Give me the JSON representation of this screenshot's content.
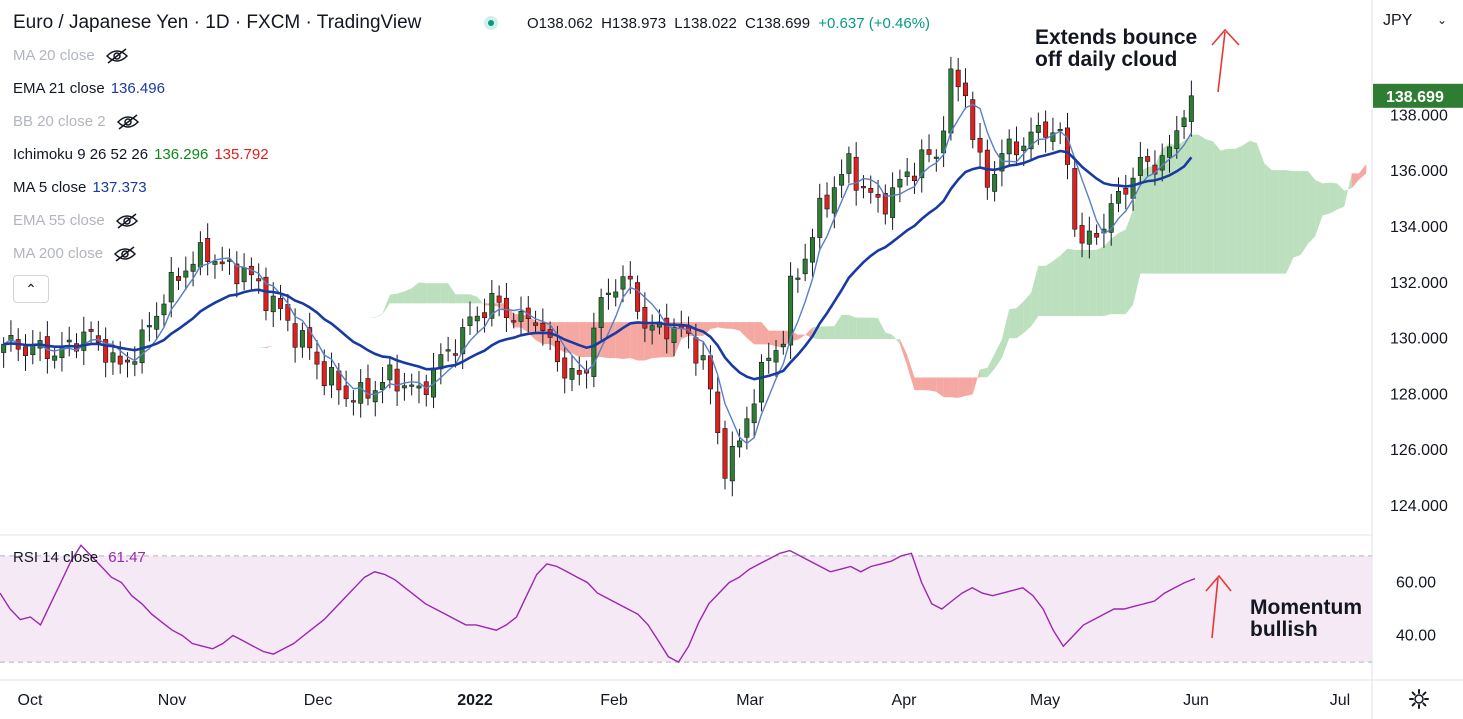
{
  "header": {
    "title": "Euro / Japanese Yen · 1D · FXCM · TradingView",
    "ohlc": {
      "o": "O138.062",
      "h": "H138.973",
      "l": "L138.022",
      "c": "C138.699",
      "chg": "+0.637 (+0.46%)"
    }
  },
  "currency": "JPY",
  "legend": [
    {
      "label": "MA 20 close",
      "hidden": true
    },
    {
      "label": "EMA 21 close",
      "value": "136.496",
      "color": "#1a3aa3"
    },
    {
      "label": "BB 20 close 2",
      "hidden": true
    },
    {
      "label": "Ichimoku 9 26 52 26",
      "value": "136.296",
      "color": "#0a8a1a",
      "value2": "135.792",
      "color2": "#e0201a"
    },
    {
      "label": "MA 5 close",
      "value": "137.373",
      "color": "#1a3aa3"
    },
    {
      "label": "EMA 55 close",
      "hidden": true
    },
    {
      "label": "MA 200 close",
      "hidden": true
    }
  ],
  "collapse_icon": "chevron-up-icon",
  "annotations": {
    "top": [
      "Extends bounce",
      "off daily cloud"
    ],
    "rsi": [
      "Momentum",
      "bullish"
    ]
  },
  "rsi_legend": {
    "label": "RSI 14 close",
    "value": "61.47"
  },
  "settings_icon": "gear-icon",
  "colors": {
    "up": "#2e7d32",
    "down": "#e0201a",
    "ema21": "#1a3aa3",
    "ma5": "#5a7fc7",
    "rsi": "#9c27b0",
    "cloud_bull": "#a5d6a7",
    "cloud_bear": "#f28b82"
  },
  "chart_data": [
    {
      "type": "candlestick",
      "title": "Euro / Japanese Yen · 1D · FXCM · TradingView",
      "x_tick_labels": [
        "Oct",
        "Nov",
        "Dec",
        "2022",
        "Feb",
        "Mar",
        "Apr",
        "May",
        "Jun",
        "Jul"
      ],
      "y_tick_labels": [
        "138.000",
        "136.000",
        "134.000",
        "132.000",
        "130.000",
        "128.000",
        "126.000",
        "124.000"
      ],
      "ylim": [
        123.5,
        141.2
      ],
      "last_price": "138.699",
      "price_path": [
        [
          0,
          129.8
        ],
        [
          8,
          129.5
        ],
        [
          11,
          130.2
        ],
        [
          14,
          129.6
        ],
        [
          16,
          128.9
        ],
        [
          19,
          129.9
        ],
        [
          22,
          131.5
        ],
        [
          25,
          132.6
        ],
        [
          28,
          133.1
        ],
        [
          31,
          132.4
        ],
        [
          33,
          132.5
        ],
        [
          35,
          131.8
        ],
        [
          37,
          131.3
        ],
        [
          40,
          130.2
        ],
        [
          42,
          129.6
        ],
        [
          44,
          128.7
        ],
        [
          47,
          128.0
        ],
        [
          49,
          127.9
        ],
        [
          51,
          128.3
        ],
        [
          53,
          128.6
        ],
        [
          55,
          128.4
        ],
        [
          57,
          128.0
        ],
        [
          59,
          128.9
        ],
        [
          61,
          129.5
        ],
        [
          63,
          130.2
        ],
        [
          65,
          130.9
        ],
        [
          67,
          131.3
        ],
        [
          69,
          131.0
        ],
        [
          71,
          130.6
        ],
        [
          73,
          130.8
        ],
        [
          75,
          129.7
        ],
        [
          77,
          128.9
        ],
        [
          79,
          128.5
        ],
        [
          80,
          129.0
        ],
        [
          81,
          130.6
        ],
        [
          83,
          131.6
        ],
        [
          85,
          132.3
        ],
        [
          86,
          131.7
        ],
        [
          88,
          130.6
        ],
        [
          90,
          130.2
        ],
        [
          92,
          130.5
        ],
        [
          94,
          129.9
        ],
        [
          96,
          129.3
        ],
        [
          97,
          128.0
        ],
        [
          98,
          126.5
        ],
        [
          99,
          125.5
        ],
        [
          101,
          126.2
        ],
        [
          103,
          128.1
        ],
        [
          105,
          129.3
        ],
        [
          107,
          130.1
        ],
        [
          108,
          131.7
        ],
        [
          110,
          133.0
        ],
        [
          112,
          134.5
        ],
        [
          114,
          135.5
        ],
        [
          116,
          136.2
        ],
        [
          118,
          135.4
        ],
        [
          120,
          134.8
        ],
        [
          122,
          135.2
        ],
        [
          124,
          135.9
        ],
        [
          126,
          136.4
        ],
        [
          128,
          136.6
        ],
        [
          129,
          137.8
        ],
        [
          130,
          139.2
        ],
        [
          132,
          138.9
        ],
        [
          133,
          137.3
        ],
        [
          134,
          136.2
        ],
        [
          135,
          135.6
        ],
        [
          137,
          136.6
        ],
        [
          139,
          136.9
        ],
        [
          141,
          137.2
        ],
        [
          143,
          137.6
        ],
        [
          145,
          137.2
        ],
        [
          146,
          136.2
        ],
        [
          147,
          134.3
        ],
        [
          148,
          133.3
        ],
        [
          150,
          133.8
        ],
        [
          152,
          134.6
        ],
        [
          154,
          135.5
        ],
        [
          156,
          136.2
        ],
        [
          158,
          136.3
        ],
        [
          160,
          136.6
        ],
        [
          161,
          137.5
        ],
        [
          162,
          138.3
        ],
        [
          163,
          138.7
        ]
      ],
      "series": [
        {
          "name": "EMA 21 close",
          "value": 136.496
        },
        {
          "name": "MA 5 close",
          "value": 137.373
        },
        {
          "name": "Ichimoku 9 26 52 26",
          "values": [
            136.296,
            135.792
          ]
        }
      ]
    },
    {
      "type": "line",
      "title": "RSI 14 close",
      "last_value": 61.47,
      "y_tick_labels": [
        "60.00",
        "40.00"
      ],
      "ylim": [
        24,
        76
      ],
      "bands": [
        30,
        70
      ],
      "values": [
        56,
        50,
        46,
        47,
        44,
        52,
        60,
        68,
        74,
        70,
        66,
        62,
        60,
        55,
        52,
        48,
        45,
        42,
        40,
        37,
        36,
        35,
        37,
        40,
        38,
        36,
        34,
        33,
        35,
        37,
        40,
        43,
        46,
        50,
        54,
        58,
        62,
        64,
        63,
        61,
        58,
        55,
        52,
        50,
        48,
        46,
        44,
        44,
        43,
        42,
        44,
        47,
        55,
        63,
        67,
        66,
        64,
        62,
        60,
        56,
        54,
        52,
        50,
        48,
        44,
        38,
        32,
        30,
        36,
        45,
        52,
        56,
        60,
        62,
        65,
        67,
        69,
        71,
        72,
        70,
        68,
        66,
        64,
        65,
        66,
        64,
        66,
        67,
        68,
        70,
        71,
        60,
        52,
        50,
        53,
        56,
        58,
        56,
        55,
        56,
        57,
        58,
        55,
        50,
        42,
        36,
        40,
        44,
        46,
        48,
        50,
        50,
        51,
        52,
        53,
        56,
        58,
        60,
        61.47
      ]
    }
  ]
}
